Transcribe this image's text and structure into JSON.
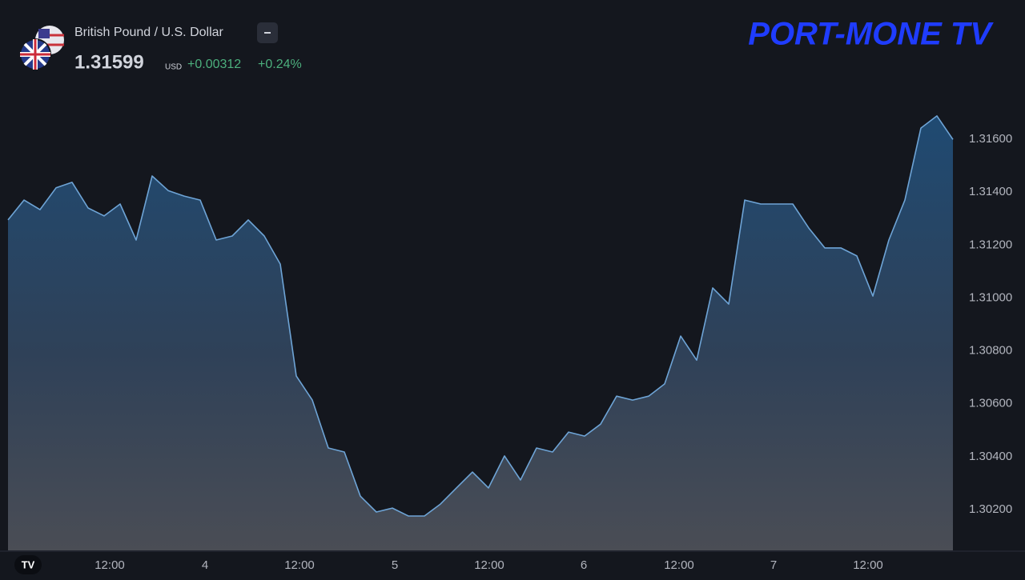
{
  "header": {
    "pair": "British Pound / U.S. Dollar",
    "price": "1.31599",
    "currency": "USD",
    "change": "+0.00312",
    "change_percent": "+0.24%",
    "brand": "PORT-MONE TV"
  },
  "chart_data": {
    "type": "area",
    "color": "#6ea4d6",
    "values": [
      1.31295,
      1.3137,
      1.31334,
      1.31416,
      1.31437,
      1.3134,
      1.3131,
      1.31355,
      1.31219,
      1.31461,
      1.31406,
      1.31385,
      1.3137,
      1.31219,
      1.31234,
      1.31295,
      1.31234,
      1.31128,
      1.30705,
      1.30614,
      1.30433,
      1.30418,
      1.30251,
      1.30191,
      1.30206,
      1.30176,
      1.30176,
      1.30221,
      1.30282,
      1.30342,
      1.30282,
      1.30403,
      1.30312,
      1.30433,
      1.30418,
      1.30493,
      1.30478,
      1.30523,
      1.30629,
      1.30614,
      1.30629,
      1.30675,
      1.30856,
      1.30765,
      1.31038,
      1.30977,
      1.3137,
      1.31355,
      1.31355,
      1.31355,
      1.31264,
      1.31189,
      1.31189,
      1.31159,
      1.31007,
      1.31219,
      1.3137,
      1.31642,
      1.31688,
      1.31599
    ],
    "xlim": [
      0,
      59
    ],
    "xticks": [
      {
        "value": 6.35,
        "label": "12:00"
      },
      {
        "value": 12.3,
        "label": "4"
      },
      {
        "value": 18.2,
        "label": "12:00"
      },
      {
        "value": 24.15,
        "label": "5"
      },
      {
        "value": 30.05,
        "label": "12:00"
      },
      {
        "value": 35.95,
        "label": "6"
      },
      {
        "value": 41.9,
        "label": "12:00"
      },
      {
        "value": 47.8,
        "label": "7"
      },
      {
        "value": 53.7,
        "label": "12:00"
      }
    ],
    "ylim": [
      1.30046,
      1.32126
    ],
    "yticks": [
      {
        "value": 1.302,
        "label": "1.30200"
      },
      {
        "value": 1.304,
        "label": "1.30400"
      },
      {
        "value": 1.306,
        "label": "1.30600"
      },
      {
        "value": 1.308,
        "label": "1.30800"
      },
      {
        "value": 1.31,
        "label": "1.31000"
      },
      {
        "value": 1.312,
        "label": "1.31200"
      },
      {
        "value": 1.314,
        "label": "1.31400"
      },
      {
        "value": 1.316,
        "label": "1.31600"
      }
    ],
    "grid": false
  }
}
